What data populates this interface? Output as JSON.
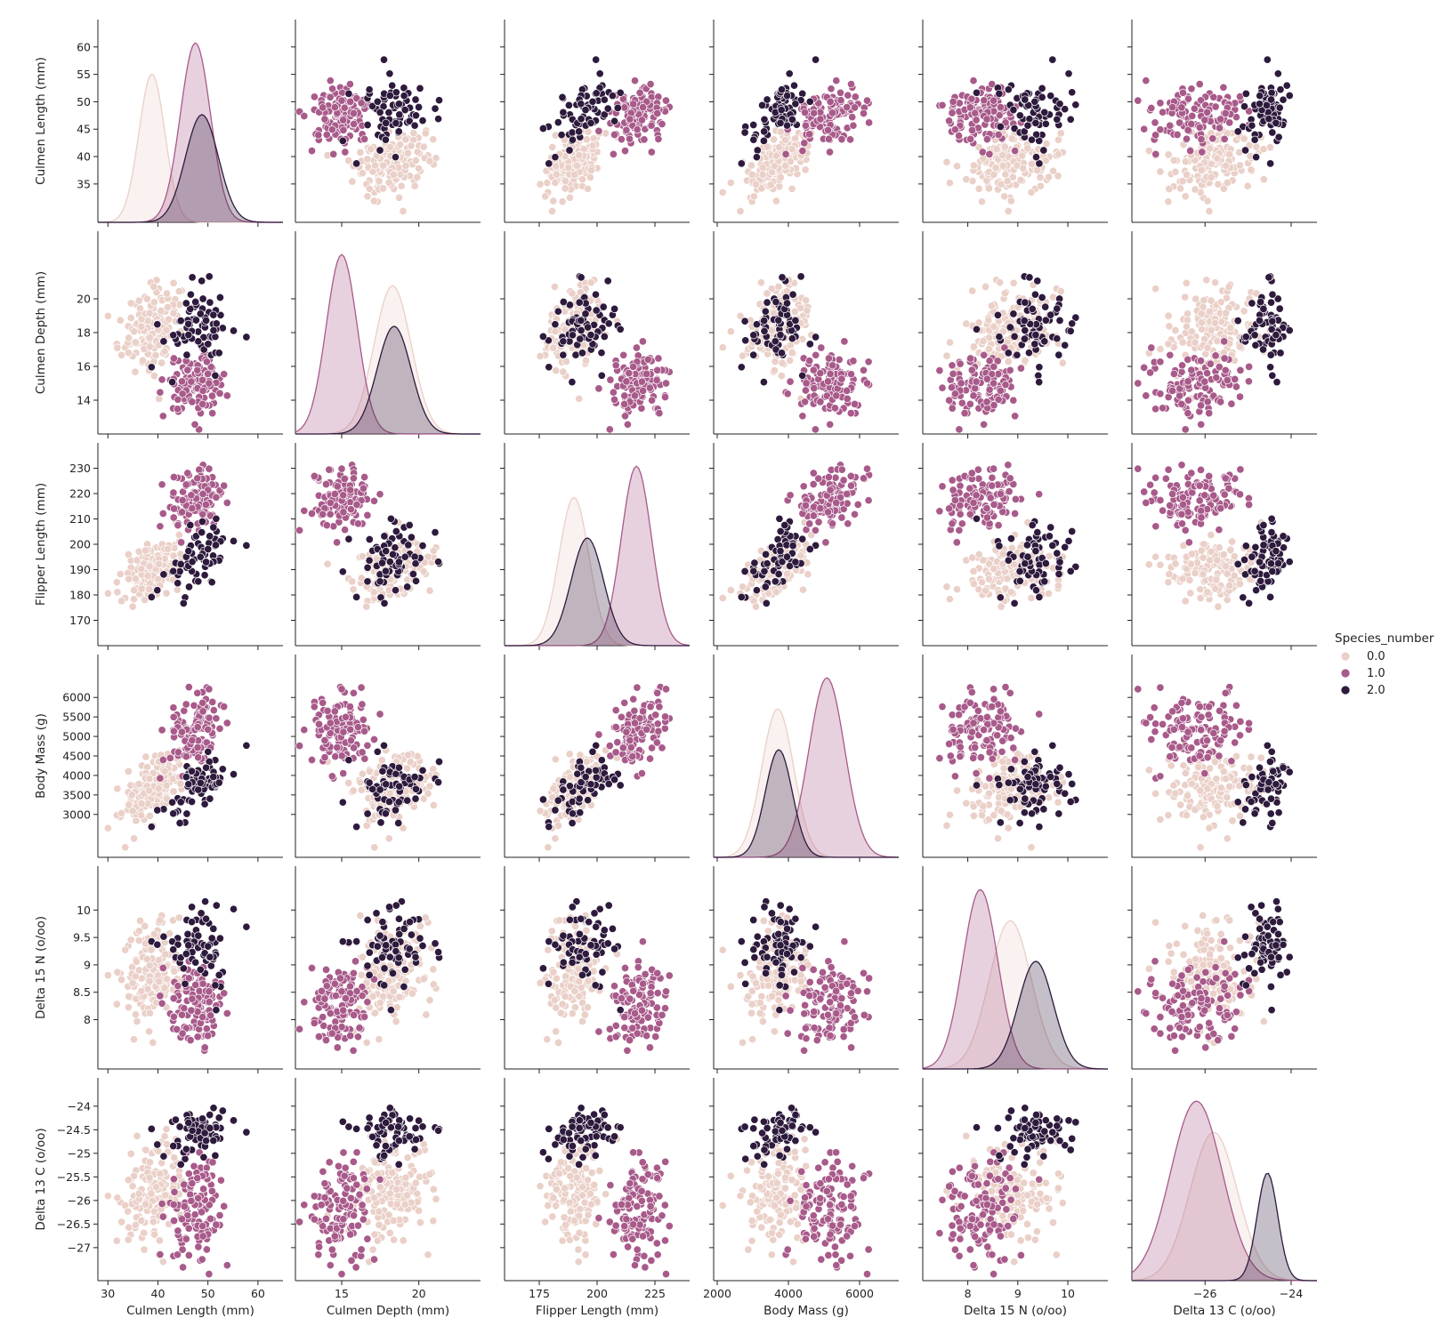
{
  "chart_data": {
    "type": "scatter",
    "subtype": "pairplot",
    "variables": [
      {
        "name": "Culmen Length (mm)",
        "ticks": [
          30,
          40,
          50,
          60
        ],
        "ylabel_ticks": [
          35,
          40,
          45,
          50,
          55,
          60
        ],
        "range": [
          28,
          65
        ]
      },
      {
        "name": "Culmen Depth (mm)",
        "ticks": [
          15,
          20
        ],
        "ylabel_ticks": [
          14,
          16,
          18,
          20
        ],
        "range": [
          12,
          24
        ]
      },
      {
        "name": "Flipper Length (mm)",
        "ticks": [
          175,
          200,
          225
        ],
        "ylabel_ticks": [
          170,
          180,
          190,
          200,
          210,
          220,
          230
        ],
        "range": [
          160,
          240
        ]
      },
      {
        "name": "Body Mass (g)",
        "ticks": [
          2000,
          4000,
          6000
        ],
        "ylabel_ticks": [
          3000,
          3500,
          4000,
          4500,
          5000,
          5500,
          6000
        ],
        "range": [
          1900,
          7100
        ]
      },
      {
        "name": "Delta 15 N (o/oo)",
        "ticks": [
          8,
          9,
          10
        ],
        "ylabel_ticks": [
          8.0,
          8.5,
          9.0,
          9.5,
          10.0
        ],
        "range": [
          7.1,
          10.8
        ]
      },
      {
        "name": "Delta 13 C (o/oo)",
        "ticks": [
          -26,
          -24
        ],
        "ylabel_ticks": [
          -27.0,
          -26.5,
          -26.0,
          -25.5,
          -25.0,
          -24.5,
          -24.0
        ],
        "range": [
          -27.7,
          -23.4
        ]
      }
    ],
    "hue": {
      "title": "Species_number",
      "levels": [
        {
          "label": "0.0",
          "color": "#ead0c8",
          "n": 150,
          "means": [
            38.8,
            18.3,
            190.0,
            3700,
            8.85,
            -25.8
          ],
          "sds": [
            2.6,
            1.2,
            6.5,
            450,
            0.42,
            0.55
          ],
          "diagonal_density_peak": 0.62
        },
        {
          "label": "1.0",
          "color": "#a85a8a",
          "n": 120,
          "means": [
            47.5,
            15.0,
            217.0,
            5080,
            8.25,
            -26.2
          ],
          "sds": [
            3.0,
            1.0,
            6.5,
            500,
            0.35,
            0.6
          ],
          "diagonal_density_peak": 0.75
        },
        {
          "label": "2.0",
          "color": "#2d1a3c",
          "n": 68,
          "means": [
            48.8,
            18.4,
            195.8,
            3730,
            9.36,
            -24.55
          ],
          "sds": [
            3.3,
            1.1,
            7.0,
            380,
            0.35,
            0.24
          ],
          "diagonal_density_peak": 0.45
        }
      ]
    },
    "diagonal": "kde",
    "offdiagonal": "scatter",
    "legend_position": "right"
  }
}
